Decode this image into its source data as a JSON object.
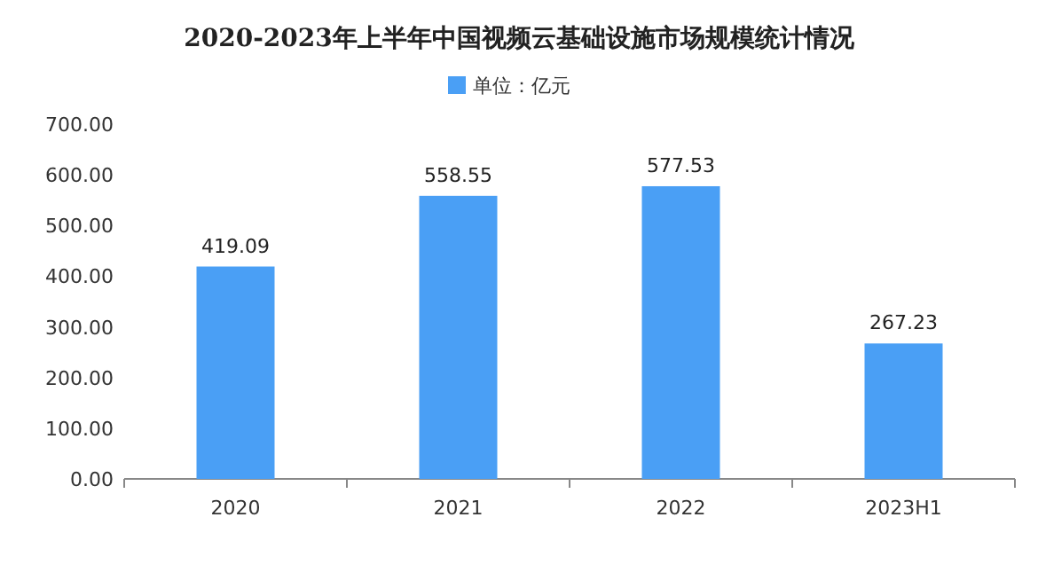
{
  "chart_data": {
    "type": "bar",
    "title": "2020-2023年上半年中国视频云基础设施市场规模统计情况",
    "categories": [
      "2020",
      "2021",
      "2022",
      "2023H1"
    ],
    "series": [
      {
        "name": "单位：亿元",
        "color": "#4a9ff5",
        "values": [
          419.09,
          558.55,
          577.53,
          267.23
        ]
      }
    ],
    "ylim": [
      0,
      700
    ],
    "yticks": [
      {
        "value": 0,
        "label": "0.00"
      },
      {
        "value": 100,
        "label": "100.00"
      },
      {
        "value": 200,
        "label": "200.00"
      },
      {
        "value": 300,
        "label": "300.00"
      },
      {
        "value": 400,
        "label": "400.00"
      },
      {
        "value": 500,
        "label": "500.00"
      },
      {
        "value": 600,
        "label": "600.00"
      },
      {
        "value": 700,
        "label": "700.00"
      }
    ],
    "legend": "top",
    "data_labels": true
  }
}
